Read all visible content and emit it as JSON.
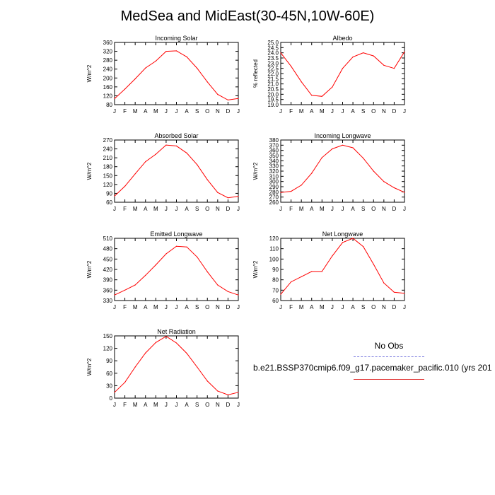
{
  "title": "MedSea and MidEast(30-45N,10W-60E)",
  "months": [
    "J",
    "F",
    "M",
    "A",
    "M",
    "J",
    "J",
    "A",
    "S",
    "O",
    "N",
    "D",
    "J"
  ],
  "colors": {
    "model": "#ff0000",
    "obs": "#7a7adf"
  },
  "legend": {
    "no_obs_label": "No Obs",
    "model_label": "b.e21.BSSP370cmip6.f09_g17.pacemaker_pacific.010 (yrs 201"
  },
  "chart_data": [
    {
      "type": "line",
      "title": "Incoming Solar",
      "ylabel": "W/m^2",
      "ylim": [
        80,
        360
      ],
      "yticks": [
        80,
        120,
        160,
        200,
        240,
        280,
        320,
        360
      ],
      "ytick_labels": [
        "80",
        "120",
        "160",
        "200",
        "240",
        "280",
        "320",
        "360"
      ],
      "values": [
        107,
        150,
        196,
        245,
        276,
        320,
        322,
        295,
        244,
        182,
        126,
        101,
        108
      ]
    },
    {
      "type": "line",
      "title": "Albedo",
      "ylabel": "% reflected",
      "ylim": [
        19.0,
        25.0
      ],
      "yticks": [
        19,
        19.5,
        20,
        20.5,
        21,
        21.5,
        22,
        22.5,
        23,
        23.5,
        24,
        24.5,
        25
      ],
      "ytick_labels": [
        "19.0",
        "19.5",
        "20.0",
        "20.5",
        "21.0",
        "21.5",
        "22.0",
        "22.5",
        "23.0",
        "23.5",
        "24.0",
        "24.5",
        "25.0"
      ],
      "values": [
        24.0,
        22.7,
        21.2,
        19.9,
        19.8,
        20.7,
        22.5,
        23.6,
        24.0,
        23.7,
        22.8,
        22.5,
        24.1
      ]
    },
    {
      "type": "line",
      "title": "Absorbed Solar",
      "ylabel": "W/m^2",
      "ylim": [
        60,
        270
      ],
      "yticks": [
        60,
        90,
        120,
        150,
        180,
        210,
        240,
        270
      ],
      "ytick_labels": [
        "60",
        "90",
        "120",
        "150",
        "180",
        "210",
        "240",
        "270"
      ],
      "values": [
        81,
        114,
        156,
        197,
        222,
        253,
        250,
        226,
        187,
        136,
        93,
        75,
        80
      ]
    },
    {
      "type": "line",
      "title": "Incoming Longwave",
      "ylabel": "W/m^2",
      "ylim": [
        260,
        380
      ],
      "yticks": [
        260,
        270,
        280,
        290,
        300,
        310,
        320,
        330,
        340,
        350,
        360,
        370,
        380
      ],
      "ytick_labels": [
        "260",
        "270",
        "280",
        "290",
        "300",
        "310",
        "320",
        "330",
        "340",
        "350",
        "360",
        "370",
        "380"
      ],
      "values": [
        279,
        281,
        293,
        316,
        346,
        363,
        370,
        365,
        345,
        320,
        300,
        288,
        279
      ]
    },
    {
      "type": "line",
      "title": "Emitted Longwave",
      "ylabel": "W/m^2",
      "ylim": [
        330,
        510
      ],
      "yticks": [
        330,
        360,
        390,
        420,
        450,
        480,
        510
      ],
      "ytick_labels": [
        "330",
        "360",
        "390",
        "420",
        "450",
        "480",
        "510"
      ],
      "values": [
        346,
        360,
        375,
        403,
        433,
        465,
        487,
        485,
        456,
        413,
        375,
        356,
        346
      ]
    },
    {
      "type": "line",
      "title": "Net Longwave",
      "ylabel": "W/m^2",
      "ylim": [
        60,
        120
      ],
      "yticks": [
        60,
        70,
        80,
        90,
        100,
        110,
        120
      ],
      "ytick_labels": [
        "60",
        "70",
        "80",
        "90",
        "100",
        "110",
        "120"
      ],
      "values": [
        66,
        78,
        83,
        88,
        88,
        103,
        116,
        120,
        112,
        95,
        77,
        68,
        67
      ]
    },
    {
      "type": "line",
      "title": "Net Radiation",
      "ylabel": "W/m^2",
      "ylim": [
        0,
        150
      ],
      "yticks": [
        0,
        30,
        60,
        90,
        120,
        150
      ],
      "ytick_labels": [
        "0",
        "30",
        "60",
        "90",
        "120",
        "150"
      ],
      "values": [
        14,
        38,
        75,
        109,
        134,
        149,
        133,
        108,
        75,
        41,
        17,
        8,
        14
      ]
    }
  ]
}
